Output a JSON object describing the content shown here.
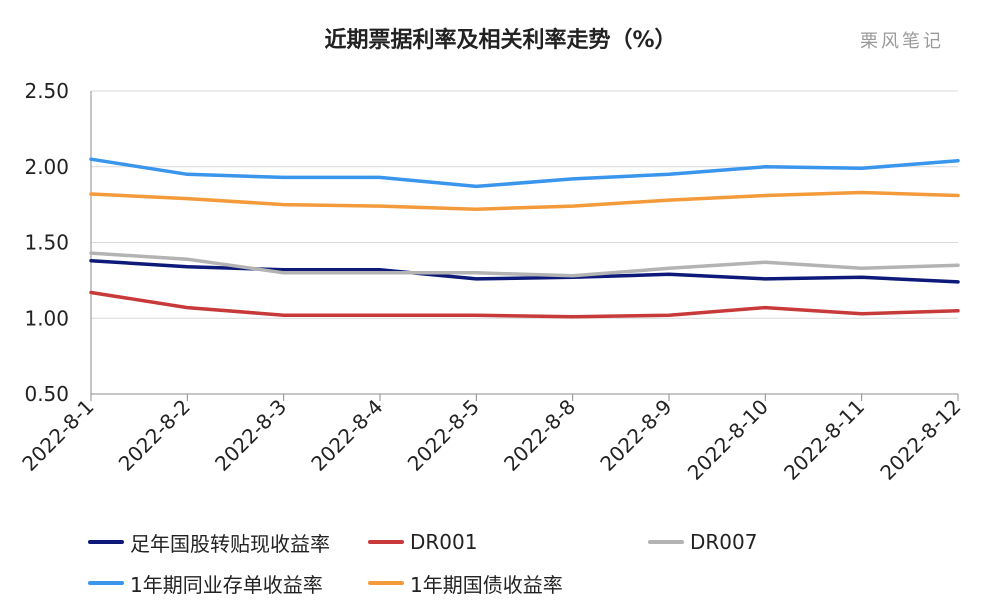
{
  "title": "近期票据利率及相关利率走势（%）",
  "watermark": "栗风笔记",
  "chart_data": {
    "type": "line",
    "title": "近期票据利率及相关利率走势（%）",
    "categories": [
      "2022-8-1",
      "2022-8-2",
      "2022-8-3",
      "2022-8-4",
      "2022-8-5",
      "2022-8-8",
      "2022-8-9",
      "2022-8-10",
      "2022-8-11",
      "2022-8-12"
    ],
    "ylim": [
      0.5,
      2.5
    ],
    "yticks": [
      "0.50",
      "1.00",
      "1.50",
      "2.00",
      "2.50"
    ],
    "grid": "horizontal",
    "legend_position": "bottom",
    "series": [
      {
        "name": "足年国股转贴现收益率",
        "color": "#0d1a7a",
        "values": [
          1.38,
          1.34,
          1.32,
          1.32,
          1.26,
          1.27,
          1.29,
          1.26,
          1.27,
          1.24
        ]
      },
      {
        "name": "DR001",
        "color": "#c83a3a",
        "values": [
          1.17,
          1.07,
          1.02,
          1.02,
          1.02,
          1.01,
          1.02,
          1.07,
          1.03,
          1.05
        ]
      },
      {
        "name": "DR007",
        "color": "#b3b3b3",
        "values": [
          1.43,
          1.39,
          1.3,
          1.3,
          1.3,
          1.28,
          1.33,
          1.37,
          1.33,
          1.35
        ]
      },
      {
        "name": "1年期同业存单收益率",
        "color": "#3a95ec",
        "values": [
          2.05,
          1.95,
          1.93,
          1.93,
          1.87,
          1.92,
          1.95,
          2.0,
          1.99,
          2.04
        ]
      },
      {
        "name": "1年期国债收益率",
        "color": "#f39a3b",
        "values": [
          1.82,
          1.79,
          1.75,
          1.74,
          1.72,
          1.74,
          1.78,
          1.81,
          1.83,
          1.81
        ]
      }
    ]
  }
}
